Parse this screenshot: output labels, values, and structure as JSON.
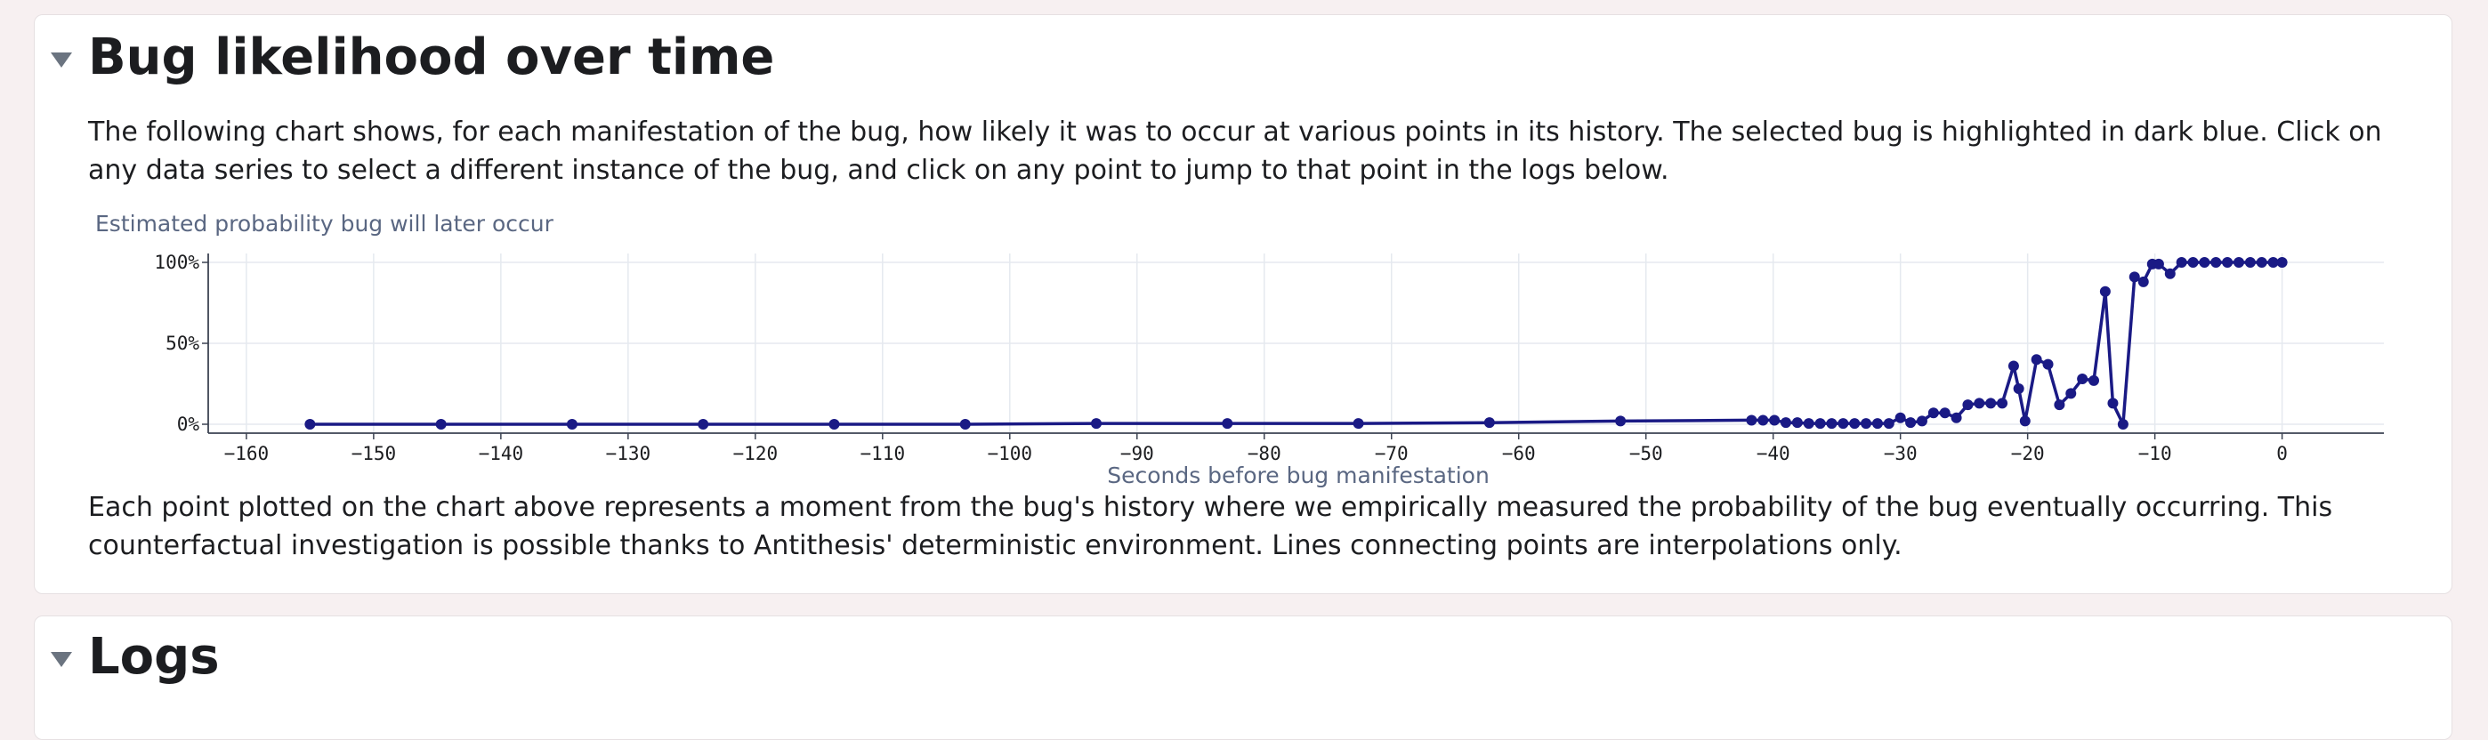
{
  "sections": {
    "bug": {
      "title": "Bug likelihood over time",
      "intro": "The following chart shows, for each manifestation of the bug, how likely it was to occur at various points in its history. The selected bug is highlighted in dark blue. Click on any data series to select a different instance of the bug, and click on any point to jump to that point in the logs below.",
      "footnote": "Each point plotted on the chart above represents a moment from the bug's history where we empirically measured the probability of the bug eventually occurring. This counterfactual investigation is possible thanks to Antithesis' deterministic environment. Lines connecting points are interpolations only."
    },
    "logs": {
      "title": "Logs"
    }
  },
  "colors": {
    "series": "#1a1a85",
    "grid": "#e5e9ef",
    "axis": "#3c4352",
    "axis_title": "#5a6782",
    "caret": "#6b7480"
  },
  "chart_data": {
    "type": "line",
    "ylabel": "Estimated probability bug will later occur",
    "xlabel": "Seconds before bug manifestation",
    "xlim": [
      -163,
      8
    ],
    "ylim": [
      0,
      100
    ],
    "x_ticks": [
      -160,
      -150,
      -140,
      -130,
      -120,
      -110,
      -100,
      -90,
      -80,
      -70,
      -60,
      -50,
      -40,
      -30,
      -20,
      -10,
      0
    ],
    "y_ticks": [
      0,
      50,
      100
    ],
    "y_tick_labels": [
      "0%",
      "50%",
      "100%"
    ],
    "grid": true,
    "series": [
      {
        "x": [
          -155,
          -144.7,
          -134.4,
          -124.1,
          -113.8,
          -103.5,
          -93.2,
          -82.9,
          -72.6,
          -62.3,
          -52,
          -41.7,
          -40.8,
          -39.9,
          -39,
          -38.1,
          -37.2,
          -36.3,
          -35.4,
          -34.5,
          -33.6,
          -32.7,
          -31.8,
          -30.9,
          -30,
          -29.2,
          -28.3,
          -27.4,
          -26.5,
          -25.6,
          -24.7,
          -23.8,
          -22.9,
          -22,
          -21.1,
          -20.7,
          -20.2,
          -19.3,
          -18.4,
          -17.5,
          -16.6,
          -15.7,
          -14.8,
          -13.9,
          -13.3,
          -12.5,
          -11.6,
          -10.9,
          -10.2,
          -9.7,
          -8.8,
          -7.9,
          -7,
          -6.1,
          -5.2,
          -4.3,
          -3.4,
          -2.5,
          -1.6,
          -0.7,
          0
        ],
        "y": [
          0,
          0,
          0,
          0,
          0,
          0,
          0.5,
          0.5,
          0.5,
          1,
          2,
          2.5,
          2.5,
          2.5,
          1,
          1,
          0.5,
          0.5,
          0.5,
          0.5,
          0.5,
          0.5,
          0.5,
          0.5,
          4,
          1,
          2,
          7,
          7,
          4,
          12,
          13,
          13,
          13,
          36,
          22,
          2,
          40,
          37,
          12,
          19,
          28,
          27,
          82,
          13,
          0,
          91,
          88,
          99,
          99,
          93,
          100,
          100,
          100,
          100,
          100,
          100,
          100,
          100,
          100,
          100
        ]
      }
    ]
  }
}
